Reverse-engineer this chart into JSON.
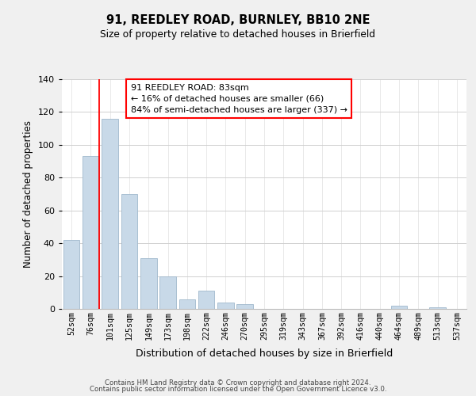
{
  "title1": "91, REEDLEY ROAD, BURNLEY, BB10 2NE",
  "title2": "Size of property relative to detached houses in Brierfield",
  "xlabel": "Distribution of detached houses by size in Brierfield",
  "ylabel": "Number of detached properties",
  "bar_labels": [
    "52sqm",
    "76sqm",
    "101sqm",
    "125sqm",
    "149sqm",
    "173sqm",
    "198sqm",
    "222sqm",
    "246sqm",
    "270sqm",
    "295sqm",
    "319sqm",
    "343sqm",
    "367sqm",
    "392sqm",
    "416sqm",
    "440sqm",
    "464sqm",
    "489sqm",
    "513sqm",
    "537sqm"
  ],
  "bar_values": [
    42,
    93,
    116,
    70,
    31,
    20,
    6,
    11,
    4,
    3,
    0,
    0,
    0,
    0,
    0,
    0,
    0,
    2,
    0,
    1,
    0
  ],
  "bar_color": "#c8d9e8",
  "bar_edge_color": "#a0b8cc",
  "ylim": [
    0,
    140
  ],
  "yticks": [
    0,
    20,
    40,
    60,
    80,
    100,
    120,
    140
  ],
  "annotation_title": "91 REEDLEY ROAD: 83sqm",
  "annotation_line1": "← 16% of detached houses are smaller (66)",
  "annotation_line2": "84% of semi-detached houses are larger (337) →",
  "footer1": "Contains HM Land Registry data © Crown copyright and database right 2024.",
  "footer2": "Contains public sector information licensed under the Open Government Licence v3.0.",
  "bg_color": "#f0f0f0",
  "plot_bg_color": "#ffffff"
}
